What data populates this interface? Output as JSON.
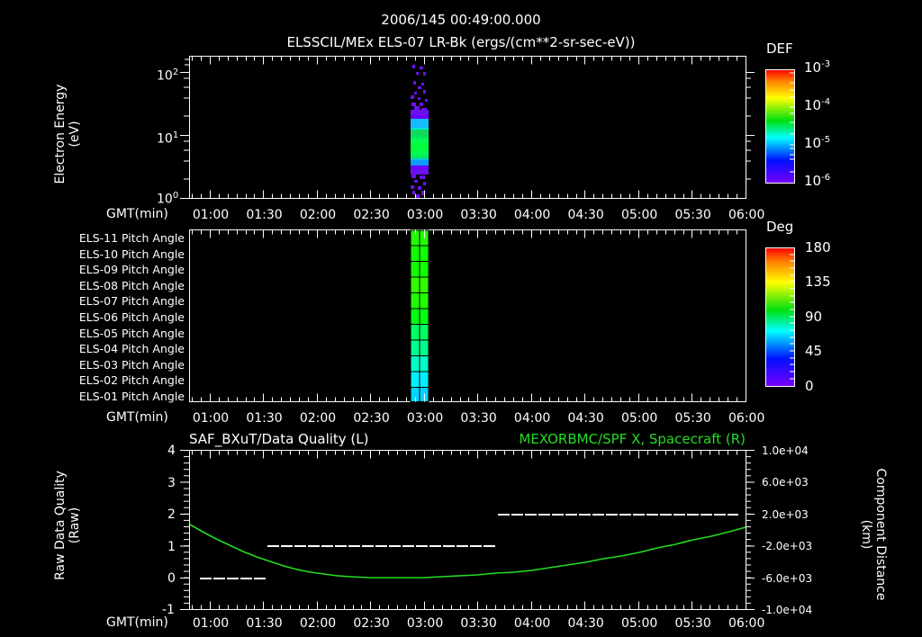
{
  "header": {
    "timestamp": "2006/145 00:49:00.000",
    "subtitle": "ELSSCIL/MEx ELS-07 LR-Bk  (ergs/(cm**2-sr-sec-eV))"
  },
  "time_axis": {
    "label": "GMT(min)",
    "ticks": [
      "01:00",
      "01:30",
      "02:00",
      "02:30",
      "03:00",
      "03:30",
      "04:00",
      "04:30",
      "05:00",
      "05:30",
      "06:00"
    ]
  },
  "panel1": {
    "ylabel_line1": "Electron Energy",
    "ylabel_line2": "(eV)",
    "yticks": [
      {
        "base": "10",
        "exp": "2"
      },
      {
        "base": "10",
        "exp": "1"
      },
      {
        "base": "10",
        "exp": "0"
      }
    ],
    "colorbar": {
      "title": "DEF",
      "ticks": [
        {
          "base": "10",
          "exp": "-3"
        },
        {
          "base": "10",
          "exp": "-4"
        },
        {
          "base": "10",
          "exp": "-5"
        },
        {
          "base": "10",
          "exp": "-6"
        }
      ]
    }
  },
  "panel2": {
    "row_labels": [
      "ELS-11 Pitch Angle",
      "ELS-10 Pitch Angle",
      "ELS-09 Pitch Angle",
      "ELS-08 Pitch Angle",
      "ELS-07 Pitch Angle",
      "ELS-06 Pitch Angle",
      "ELS-05 Pitch Angle",
      "ELS-04 Pitch Angle",
      "ELS-03 Pitch Angle",
      "ELS-02 Pitch Angle",
      "ELS-01 Pitch Angle"
    ],
    "colorbar": {
      "title": "Deg",
      "ticks": [
        "180",
        "135",
        "90",
        "45",
        "0"
      ]
    }
  },
  "panel3": {
    "left_title": "SAF_BXuT/Data Quality (L)",
    "right_title": "MEXORBMC/SPF X, Spacecraft (R)",
    "right_title_color": "#22dd22",
    "ylabel_left_line1": "Raw Data Quality",
    "ylabel_left_line2": "(Raw)",
    "yticks_left": [
      "4",
      "3",
      "2",
      "1",
      "0",
      "-1"
    ],
    "ylabel_right_line1": "Component Distance",
    "ylabel_right_line2": "(km)",
    "yticks_right": [
      "1.0e+04",
      "6.0e+03",
      "2.0e+03",
      "-2.0e+03",
      "-6.0e+03",
      "-1.0e+04"
    ]
  },
  "chart_data": [
    {
      "type": "heatmap",
      "title": "ELSSCIL/MEx ELS-07 LR-Bk (ergs/(cm**2-sr-sec-eV))",
      "xlabel": "GMT(min)",
      "ylabel": "Electron Energy (eV)",
      "yscale": "log",
      "ylim": [
        1,
        200
      ],
      "x_range": [
        "00:49",
        "06:00"
      ],
      "colorbar": {
        "label": "DEF",
        "scale": "log",
        "range": [
          1e-06,
          0.001
        ]
      },
      "data_region": {
        "x_start": "02:49",
        "x_end": "02:58",
        "note": "peak ~1e-5 to 1e-4 around 4-10 eV, sparse 1e-6 at higher/lower energies"
      }
    },
    {
      "type": "heatmap",
      "title": "ELS Pitch Angle",
      "xlabel": "GMT(min)",
      "categories": [
        "ELS-11",
        "ELS-10",
        "ELS-09",
        "ELS-08",
        "ELS-07",
        "ELS-06",
        "ELS-05",
        "ELS-04",
        "ELS-03",
        "ELS-02",
        "ELS-01"
      ],
      "colorbar": {
        "label": "Deg",
        "range": [
          0,
          180
        ]
      },
      "data_region": {
        "x_start": "02:49",
        "x_end": "02:58"
      },
      "values_deg": [
        100,
        100,
        102,
        98,
        96,
        94,
        88,
        80,
        70,
        62,
        56
      ]
    },
    {
      "type": "line",
      "title": "SAF_BXuT/Data Quality (L) ; MEXORBMC/SPF X, Spacecraft (R)",
      "xlabel": "GMT(min)",
      "x": [
        "00:49",
        "01:00",
        "01:30",
        "02:00",
        "02:30",
        "03:00",
        "03:30",
        "04:00",
        "04:30",
        "05:00",
        "05:30",
        "06:00"
      ],
      "series": [
        {
          "name": "Raw Data Quality",
          "axis": "left",
          "ylim": [
            -1,
            4
          ],
          "steps": [
            {
              "from": "00:55",
              "to": "01:32",
              "value": 0
            },
            {
              "from": "01:32",
              "to": "03:38",
              "value": 1
            },
            {
              "from": "03:38",
              "to": "06:00",
              "value": 2
            }
          ]
        },
        {
          "name": "SPF X, Spacecraft (km)",
          "axis": "right",
          "ylim": [
            -10000,
            10000
          ],
          "color": "#22dd22",
          "values": [
            -600,
            -2000,
            -4900,
            -6500,
            -7200,
            -7400,
            -7000,
            -6300,
            -5100,
            -3700,
            -2200,
            -700
          ]
        }
      ]
    }
  ]
}
